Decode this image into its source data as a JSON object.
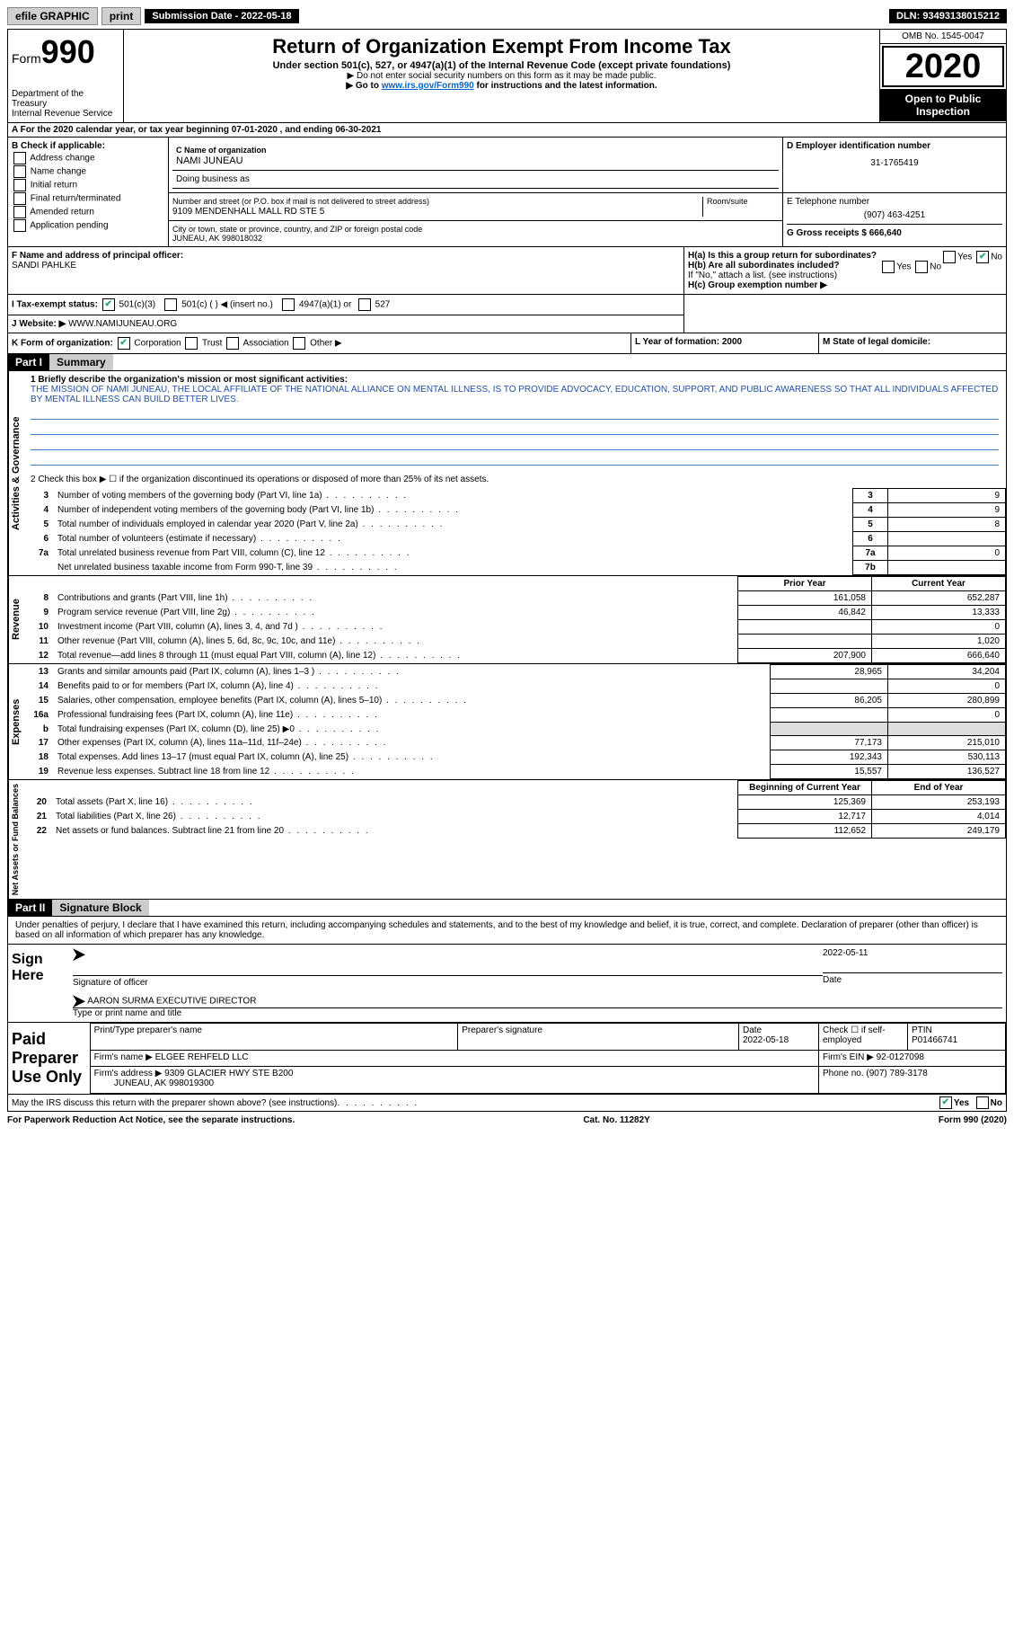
{
  "topbar": {
    "efile": "efile GRAPHIC",
    "print": "print",
    "sub_label": "Submission Date - 2022-05-18",
    "dln": "DLN: 93493138015212"
  },
  "header": {
    "form": "Form",
    "form_num": "990",
    "dept": "Department of the Treasury\nInternal Revenue Service",
    "title": "Return of Organization Exempt From Income Tax",
    "subtitle": "Under section 501(c), 527, or 4947(a)(1) of the Internal Revenue Code (except private foundations)",
    "note1": "▶ Do not enter social security numbers on this form as it may be made public.",
    "note2_pre": "▶ Go to ",
    "note2_link": "www.irs.gov/Form990",
    "note2_post": " for instructions and the latest information.",
    "omb": "OMB No. 1545-0047",
    "year": "2020",
    "open": "Open to Public Inspection"
  },
  "row_a": "A For the 2020 calendar year, or tax year beginning 07-01-2020    , and ending 06-30-2021",
  "col_b": {
    "header": "B Check if applicable:",
    "items": [
      "Address change",
      "Name change",
      "Initial return",
      "Final return/terminated",
      "Amended return",
      "Application pending"
    ]
  },
  "box_c": {
    "label": "C Name of organization",
    "name": "NAMI JUNEAU",
    "dba_label": "Doing business as",
    "addr_label": "Number and street (or P.O. box if mail is not delivered to street address)",
    "room_label": "Room/suite",
    "addr": "9109 MENDENHALL MALL RD STE 5",
    "city_label": "City or town, state or province, country, and ZIP or foreign postal code",
    "city": "JUNEAU, AK  998018032"
  },
  "box_d": {
    "label": "D Employer identification number",
    "value": "31-1765419"
  },
  "box_e": {
    "label": "E Telephone number",
    "value": "(907) 463-4251"
  },
  "box_g": "G Gross receipts $ 666,640",
  "box_f": {
    "label": "F Name and address of principal officer:",
    "name": "SANDI PAHLKE"
  },
  "box_h": {
    "a": "H(a)  Is this a group return for subordinates?",
    "b": "H(b)  Are all subordinates included?",
    "b_note": "If \"No,\" attach a list. (see instructions)",
    "c": "H(c)  Group exemption number ▶",
    "yes": "Yes",
    "no": "No"
  },
  "row_i": {
    "label": "I   Tax-exempt status:",
    "opts": [
      "501(c)(3)",
      "501(c) (  ) ◀ (insert no.)",
      "4947(a)(1) or",
      "527"
    ]
  },
  "row_j": {
    "label": "J   Website: ▶",
    "value": "WWW.NAMIJUNEAU.ORG"
  },
  "row_k": {
    "label": "K Form of organization:",
    "opts": [
      "Corporation",
      "Trust",
      "Association",
      "Other ▶"
    ],
    "l": "L Year of formation: 2000",
    "m": "M State of legal domicile:"
  },
  "part1": {
    "num": "Part I",
    "title": "Summary",
    "q1_label": "1  Briefly describe the organization's mission or most significant activities:",
    "q1_text": "THE MISSION OF NAMI JUNEAU, THE LOCAL AFFILIATE OF THE NATIONAL ALLIANCE ON MENTAL ILLNESS, IS TO PROVIDE ADVOCACY, EDUCATION, SUPPORT, AND PUBLIC AWARENESS SO THAT ALL INDIVIDUALS AFFECTED BY MENTAL ILLNESS CAN BUILD BETTER LIVES.",
    "q2": "2   Check this box ▶ ☐  if the organization discontinued its operations or disposed of more than 25% of its net assets.",
    "governance_rows": [
      {
        "n": "3",
        "text": "Number of voting members of the governing body (Part VI, line 1a)",
        "box": "3",
        "val": "9"
      },
      {
        "n": "4",
        "text": "Number of independent voting members of the governing body (Part VI, line 1b)",
        "box": "4",
        "val": "9"
      },
      {
        "n": "5",
        "text": "Total number of individuals employed in calendar year 2020 (Part V, line 2a)",
        "box": "5",
        "val": "8"
      },
      {
        "n": "6",
        "text": "Total number of volunteers (estimate if necessary)",
        "box": "6",
        "val": ""
      },
      {
        "n": "7a",
        "text": "Total unrelated business revenue from Part VIII, column (C), line 12",
        "box": "7a",
        "val": "0"
      },
      {
        "n": "",
        "text": "Net unrelated business taxable income from Form 990-T, line 39",
        "box": "7b",
        "val": ""
      }
    ],
    "prior_hdr": "Prior Year",
    "current_hdr": "Current Year",
    "revenue_label": "Revenue",
    "revenue_rows": [
      {
        "n": "8",
        "text": "Contributions and grants (Part VIII, line 1h)",
        "prior": "161,058",
        "curr": "652,287"
      },
      {
        "n": "9",
        "text": "Program service revenue (Part VIII, line 2g)",
        "prior": "46,842",
        "curr": "13,333"
      },
      {
        "n": "10",
        "text": "Investment income (Part VIII, column (A), lines 3, 4, and 7d )",
        "prior": "",
        "curr": "0"
      },
      {
        "n": "11",
        "text": "Other revenue (Part VIII, column (A), lines 5, 6d, 8c, 9c, 10c, and 11e)",
        "prior": "",
        "curr": "1,020"
      },
      {
        "n": "12",
        "text": "Total revenue—add lines 8 through 11 (must equal Part VIII, column (A), line 12)",
        "prior": "207,900",
        "curr": "666,640"
      }
    ],
    "expenses_label": "Expenses",
    "expenses_rows": [
      {
        "n": "13",
        "text": "Grants and similar amounts paid (Part IX, column (A), lines 1–3 )",
        "prior": "28,965",
        "curr": "34,204"
      },
      {
        "n": "14",
        "text": "Benefits paid to or for members (Part IX, column (A), line 4)",
        "prior": "",
        "curr": "0"
      },
      {
        "n": "15",
        "text": "Salaries, other compensation, employee benefits (Part IX, column (A), lines 5–10)",
        "prior": "86,205",
        "curr": "280,899"
      },
      {
        "n": "16a",
        "text": "Professional fundraising fees (Part IX, column (A), line 11e)",
        "prior": "",
        "curr": "0"
      },
      {
        "n": "b",
        "text": "Total fundraising expenses (Part IX, column (D), line 25) ▶0",
        "prior": "grey",
        "curr": "grey"
      },
      {
        "n": "17",
        "text": "Other expenses (Part IX, column (A), lines 11a–11d, 11f–24e)",
        "prior": "77,173",
        "curr": "215,010"
      },
      {
        "n": "18",
        "text": "Total expenses. Add lines 13–17 (must equal Part IX, column (A), line 25)",
        "prior": "192,343",
        "curr": "530,113"
      },
      {
        "n": "19",
        "text": "Revenue less expenses. Subtract line 18 from line 12",
        "prior": "15,557",
        "curr": "136,527"
      }
    ],
    "net_label": "Net Assets or Fund Balances",
    "begin_hdr": "Beginning of Current Year",
    "end_hdr": "End of Year",
    "net_rows": [
      {
        "n": "20",
        "text": "Total assets (Part X, line 16)",
        "prior": "125,369",
        "curr": "253,193"
      },
      {
        "n": "21",
        "text": "Total liabilities (Part X, line 26)",
        "prior": "12,717",
        "curr": "4,014"
      },
      {
        "n": "22",
        "text": "Net assets or fund balances. Subtract line 21 from line 20",
        "prior": "112,652",
        "curr": "249,179"
      }
    ]
  },
  "part2": {
    "num": "Part II",
    "title": "Signature Block",
    "penalty": "Under penalties of perjury, I declare that I have examined this return, including accompanying schedules and statements, and to the best of my knowledge and belief, it is true, correct, and complete. Declaration of preparer (other than officer) is based on all information of which preparer has any knowledge.",
    "sign_here": "Sign Here",
    "sig_officer": "Signature of officer",
    "sig_date_val": "2022-05-11",
    "sig_date": "Date",
    "officer_name": "AARON SURMA  EXECUTIVE DIRECTOR",
    "officer_label": "Type or print name and title",
    "paid": "Paid Preparer Use Only",
    "prep_name_label": "Print/Type preparer's name",
    "prep_sig_label": "Preparer's signature",
    "date_label": "Date",
    "date_val": "2022-05-18",
    "check_label": "Check ☐ if self-employed",
    "ptin_label": "PTIN",
    "ptin_val": "P01466741",
    "firm_name_label": "Firm's name    ▶",
    "firm_name": "ELGEE REHFELD LLC",
    "firm_ein_label": "Firm's EIN ▶",
    "firm_ein": "92-0127098",
    "firm_addr_label": "Firm's address ▶",
    "firm_addr": "9309 GLACIER HWY STE B200",
    "firm_city": "JUNEAU, AK  998019300",
    "phone_label": "Phone no.",
    "phone": "(907) 789-3178",
    "discuss": "May the IRS discuss this return with the preparer shown above? (see instructions)",
    "yes": "Yes",
    "no": "No"
  },
  "footer": {
    "left": "For Paperwork Reduction Act Notice, see the separate instructions.",
    "mid": "Cat. No. 11282Y",
    "right": "Form 990 (2020)"
  },
  "labels": {
    "activities": "Activities & Governance"
  }
}
